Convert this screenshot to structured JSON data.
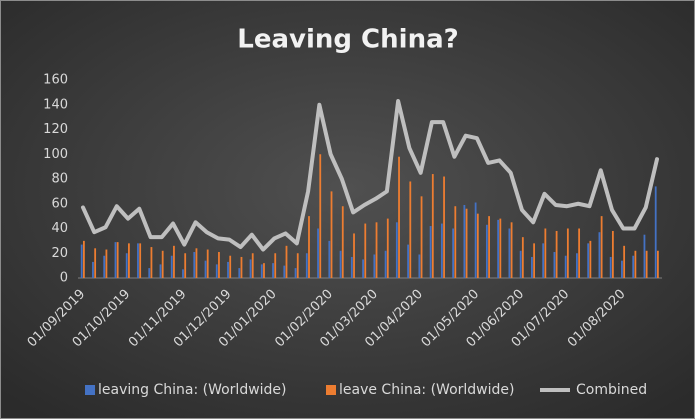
{
  "chart_data": {
    "type": "bar-line",
    "title": "Leaving China?",
    "categories": [
      "01/09/2019",
      null,
      null,
      null,
      "01/10/2019",
      null,
      null,
      null,
      null,
      "01/11/2019",
      null,
      null,
      null,
      "01/12/2019",
      null,
      null,
      null,
      "01/01/2020",
      null,
      null,
      null,
      null,
      "01/02/2020",
      null,
      null,
      null,
      "01/03/2020",
      null,
      null,
      null,
      "01/04/2020",
      null,
      null,
      null,
      null,
      "01/05/2020",
      null,
      null,
      null,
      "01/06/2020",
      null,
      null,
      null,
      "01/07/2020",
      null,
      null,
      null,
      null,
      "01/08/2020",
      null,
      null,
      null
    ],
    "series": [
      {
        "name": "leaving China: (Worldwide)",
        "color": "#4472c4",
        "kind": "bar",
        "values": [
          27,
          13,
          18,
          29,
          20,
          28,
          8,
          11,
          18,
          7,
          21,
          14,
          11,
          13,
          8,
          15,
          11,
          12,
          10,
          8,
          20,
          40,
          30,
          22,
          17,
          15,
          19,
          22,
          45,
          27,
          19,
          42,
          44,
          40,
          59,
          61,
          43,
          47,
          40,
          22,
          17,
          28,
          21,
          18,
          20,
          28,
          37,
          17,
          14,
          18,
          35,
          74
        ]
      },
      {
        "name": "leave China: (Worldwide)",
        "color": "#ed7d31",
        "kind": "bar",
        "values": [
          30,
          24,
          23,
          29,
          28,
          28,
          25,
          22,
          26,
          20,
          24,
          23,
          21,
          18,
          17,
          20,
          12,
          20,
          26,
          20,
          50,
          100,
          70,
          58,
          36,
          44,
          45,
          48,
          98,
          78,
          66,
          84,
          82,
          58,
          56,
          52,
          50,
          48,
          45,
          33,
          28,
          40,
          38,
          40,
          40,
          30,
          50,
          38,
          26,
          22,
          22,
          22
        ]
      },
      {
        "name": "Combined",
        "color": "#bfbfbf",
        "kind": "line",
        "values": [
          57,
          37,
          41,
          58,
          48,
          56,
          33,
          33,
          44,
          27,
          45,
          37,
          32,
          31,
          25,
          35,
          23,
          32,
          36,
          28,
          70,
          140,
          100,
          80,
          53,
          59,
          64,
          70,
          143,
          105,
          85,
          126,
          126,
          98,
          115,
          113,
          93,
          95,
          85,
          55,
          45,
          68,
          59,
          58,
          60,
          58,
          87,
          55,
          40,
          40,
          57,
          96
        ]
      }
    ],
    "ylim": [
      0,
      160
    ],
    "yticks": [
      0,
      20,
      40,
      60,
      80,
      100,
      120,
      140,
      160
    ],
    "grid": false,
    "legend": "bottom"
  }
}
